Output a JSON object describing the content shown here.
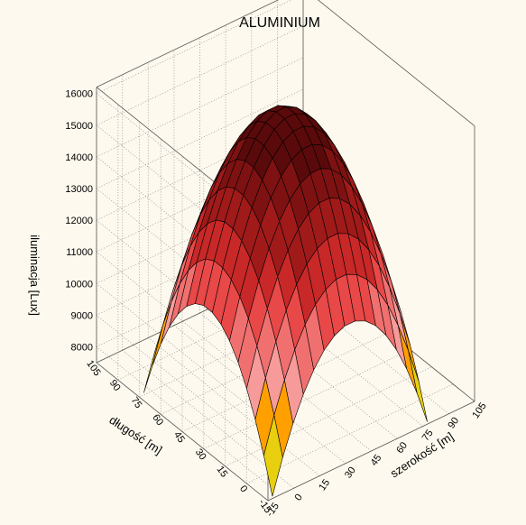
{
  "chart_data": {
    "type": "surface3d",
    "title": "ALUMINIUM",
    "xlabel": "szerokość [m]",
    "ylabel": "długość [m]",
    "zlabel": "iluminacja [Lux]",
    "x_ticks": [
      "-15",
      "0",
      "15",
      "30",
      "45",
      "60",
      "75",
      "90",
      "105"
    ],
    "y_ticks": [
      "-15",
      "0",
      "15",
      "30",
      "45",
      "60",
      "75",
      "90",
      "105"
    ],
    "z_ticks": [
      "8000",
      "9000",
      "10000",
      "11000",
      "12000",
      "13000",
      "14000",
      "15000",
      "16000"
    ],
    "xlim": [
      -15,
      105
    ],
    "ylim": [
      -15,
      105
    ],
    "zlim": [
      7500,
      16200
    ],
    "surface": {
      "x_range": [
        0,
        90
      ],
      "y_range": [
        0,
        90
      ],
      "grid_steps": 15,
      "peak": {
        "x": 45,
        "y": 45,
        "z": 16050
      },
      "corner_z": 6700,
      "edge_mid_z": 11000
    },
    "color_levels": [
      {
        "min": 15000,
        "color": "#5a0a0a"
      },
      {
        "min": 14000,
        "color": "#7e1212"
      },
      {
        "min": 13000,
        "color": "#a01a1a"
      },
      {
        "min": 12000,
        "color": "#c82828"
      },
      {
        "min": 11000,
        "color": "#e84848"
      },
      {
        "min": 10000,
        "color": "#f07070"
      },
      {
        "min": 9000,
        "color": "#f79a9a"
      },
      {
        "min": 8000,
        "color": "#ffa000"
      },
      {
        "min": 7000,
        "color": "#e8d010"
      },
      {
        "min": -1000000000.0,
        "color": "#b8f000"
      }
    ],
    "grid": true
  }
}
